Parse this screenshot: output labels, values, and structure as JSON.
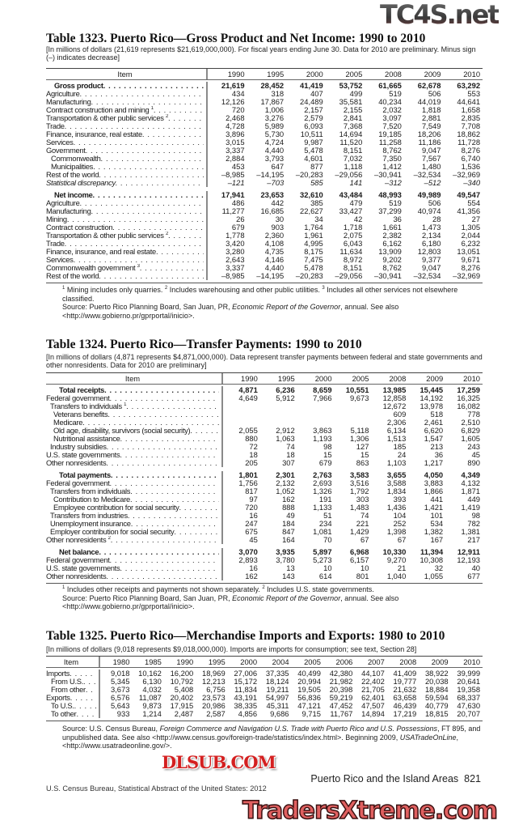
{
  "tables": [
    {
      "title": "Table 1323. Puerto Rico—Gross Product and Net Income: 1990 to 2010",
      "note": "[In millions of dollars (21,619 represents $21,619,000,000). For fiscal years ending June 30. Data for 2010 are preliminary. Minus sign (–) indicates decrease]",
      "item_header": "Item",
      "columns": [
        "1990",
        "1995",
        "2000",
        "2005",
        "2008",
        "2009",
        "2010"
      ],
      "rows": [
        {
          "label": "Gross product",
          "style": "bold",
          "level": 2,
          "values": [
            "21,619",
            "28,452",
            "41,419",
            "53,752",
            "61,665",
            "62,678",
            "63,292"
          ]
        },
        {
          "label": "Agriculture",
          "level": 0,
          "values": [
            "434",
            "318",
            "407",
            "499",
            "519",
            "506",
            "553"
          ]
        },
        {
          "label": "Manufacturing",
          "level": 0,
          "values": [
            "12,126",
            "17,867",
            "24,489",
            "35,581",
            "40,234",
            "44,019",
            "44,641"
          ]
        },
        {
          "label": "Contract construction and mining",
          "sup": "1",
          "level": 0,
          "values": [
            "720",
            "1,006",
            "2,157",
            "2,155",
            "2,032",
            "1,818",
            "1,658"
          ]
        },
        {
          "label": "Transportation & other public services",
          "sup": "2",
          "level": 0,
          "values": [
            "2,468",
            "3,276",
            "2,579",
            "2,841",
            "3,097",
            "2,881",
            "2,835"
          ]
        },
        {
          "label": "Trade",
          "level": 0,
          "values": [
            "4,728",
            "5,989",
            "6,093",
            "7,368",
            "7,520",
            "7,549",
            "7,708"
          ]
        },
        {
          "label": "Finance, insurance, real estate",
          "level": 0,
          "values": [
            "3,896",
            "5,730",
            "10,511",
            "14,694",
            "19,185",
            "18,206",
            "18,862"
          ]
        },
        {
          "label": "Services",
          "level": 0,
          "values": [
            "3,015",
            "4,724",
            "9,987",
            "11,520",
            "11,258",
            "11,186",
            "11,728"
          ]
        },
        {
          "label": "Government",
          "level": 0,
          "values": [
            "3,337",
            "4,440",
            "5,478",
            "8,151",
            "8,762",
            "9,047",
            "8,276"
          ]
        },
        {
          "label": "Commonwealth",
          "level": 1,
          "values": [
            "2,884",
            "3,793",
            "4,601",
            "7,032",
            "7,350",
            "7,567",
            "6,740"
          ]
        },
        {
          "label": "Municipalities",
          "level": 1,
          "values": [
            "453",
            "647",
            "877",
            "1,118",
            "1,412",
            "1,480",
            "1,536"
          ]
        },
        {
          "label": "Rest of the world",
          "level": 0,
          "values": [
            "–8,985",
            "–14,195",
            "–20,283",
            "–29,056",
            "–30,941",
            "–32,534",
            "–32,969"
          ]
        },
        {
          "label": "Statistical discrepancy",
          "style": "italic",
          "level": 0,
          "values": [
            "–121",
            "–703",
            "585",
            "141",
            "–312",
            "–512",
            "–340"
          ]
        },
        {
          "label": "Net income",
          "style": "bold",
          "level": 2,
          "section_start": true,
          "values": [
            "17,941",
            "23,653",
            "32,610",
            "43,484",
            "48,993",
            "49,989",
            "49,547"
          ]
        },
        {
          "label": "Agriculture",
          "level": 0,
          "values": [
            "486",
            "442",
            "385",
            "479",
            "519",
            "506",
            "554"
          ]
        },
        {
          "label": "Manufacturing",
          "level": 0,
          "values": [
            "11,277",
            "16,685",
            "22,627",
            "33,427",
            "37,299",
            "40,974",
            "41,356"
          ]
        },
        {
          "label": "Mining",
          "level": 0,
          "values": [
            "26",
            "30",
            "34",
            "42",
            "36",
            "28",
            "27"
          ]
        },
        {
          "label": "Contract construction",
          "level": 0,
          "values": [
            "679",
            "903",
            "1,764",
            "1,718",
            "1,661",
            "1,473",
            "1,305"
          ]
        },
        {
          "label": "Transportation & other public services",
          "sup": "2",
          "level": 0,
          "values": [
            "1,778",
            "2,360",
            "1,961",
            "2,075",
            "2,382",
            "2,134",
            "2,044"
          ]
        },
        {
          "label": "Trade",
          "level": 0,
          "values": [
            "3,420",
            "4,108",
            "4,995",
            "6,043",
            "6,162",
            "6,180",
            "6,232"
          ]
        },
        {
          "label": "Finance, insurance, and real estate",
          "level": 0,
          "values": [
            "3,280",
            "4,735",
            "8,175",
            "11,634",
            "13,909",
            "12,803",
            "13,051"
          ]
        },
        {
          "label": "Services",
          "level": 0,
          "values": [
            "2,643",
            "4,146",
            "7,475",
            "8,972",
            "9,202",
            "9,377",
            "9,671"
          ]
        },
        {
          "label": "Commonwealth government",
          "sup": "3",
          "level": 0,
          "values": [
            "3,337",
            "4,440",
            "5,478",
            "8,151",
            "8,762",
            "9,047",
            "8,276"
          ]
        },
        {
          "label": "Rest of the world",
          "level": 0,
          "values": [
            "–8,985",
            "–14,195",
            "–20,283",
            "–29,056",
            "–30,941",
            "–32,534",
            "–32,969"
          ]
        }
      ],
      "footnotes": [
        [
          {
            "sup": "1"
          },
          {
            "text": " Mining includes only quarries. "
          },
          {
            "sup": "2"
          },
          {
            "text": " Includes warehousing and other public utilities. "
          },
          {
            "sup": "3"
          },
          {
            "text": " Includes all other services not elsewhere classified."
          }
        ],
        [
          {
            "text": "Source: Puerto Rico Planning Board, San Juan, PR, "
          },
          {
            "text": "Economic Report of the Governor",
            "italic": true
          },
          {
            "text": ", annual. See also <http://www.gobierno.pr/gprportal/inicio>."
          }
        ]
      ]
    },
    {
      "title": "Table 1324. Puerto Rico—Transfer Payments: 1990 to 2010",
      "note": "[In millions of dollars (4,871 represents $4,871,000,000). Data represent transfer payments between federal and state governments and other nonresidents. Data for 2010 are preliminary]",
      "item_header": "Item",
      "columns": [
        "1990",
        "1995",
        "2000",
        "2005",
        "2008",
        "2009",
        "2010"
      ],
      "rows": [
        {
          "label": "Total receipts",
          "style": "bold",
          "level": 3,
          "values": [
            "4,871",
            "6,236",
            "8,659",
            "10,551",
            "13,985",
            "15,445",
            "17,259"
          ]
        },
        {
          "label": "Federal government",
          "level": 0,
          "values": [
            "4,649",
            "5,912",
            "7,966",
            "9,673",
            "12,858",
            "14,192",
            "16,325"
          ]
        },
        {
          "label": "Transfers to individuals",
          "sup": "1",
          "level": 1,
          "values": [
            "",
            "",
            "",
            "",
            "12,672",
            "13,978",
            "16,082"
          ]
        },
        {
          "label": "Veterans benefits",
          "level": 2,
          "values": [
            "",
            "",
            "",
            "",
            "609",
            "518",
            "778"
          ]
        },
        {
          "label": "Medicare",
          "level": 2,
          "values": [
            "",
            "",
            "",
            "",
            "2,306",
            "2,461",
            "2,510"
          ]
        },
        {
          "label": "Old age, disability, survivors (social security)",
          "level": 2,
          "values": [
            "2,055",
            "2,912",
            "3,863",
            "5,118",
            "6,134",
            "6,620",
            "6,829"
          ]
        },
        {
          "label": "Nutritional assistance",
          "level": 2,
          "values": [
            "880",
            "1,063",
            "1,193",
            "1,306",
            "1,513",
            "1,547",
            "1,605"
          ]
        },
        {
          "label": "Industry subsidies",
          "level": 1,
          "values": [
            "72",
            "74",
            "98",
            "127",
            "185",
            "213",
            "243"
          ]
        },
        {
          "label": "U.S. state governments",
          "level": 0,
          "values": [
            "18",
            "18",
            "15",
            "15",
            "24",
            "36",
            "45"
          ]
        },
        {
          "label": "Other nonresidents",
          "level": 0,
          "values": [
            "205",
            "307",
            "679",
            "863",
            "1,103",
            "1,217",
            "890"
          ]
        },
        {
          "label": "Total payments",
          "style": "bold",
          "level": 3,
          "section_start": true,
          "values": [
            "1,801",
            "2,301",
            "2,763",
            "3,583",
            "3,655",
            "4,050",
            "4,349"
          ]
        },
        {
          "label": "Federal government",
          "level": 0,
          "values": [
            "1,756",
            "2,132",
            "2,693",
            "3,516",
            "3,588",
            "3,883",
            "4,132"
          ]
        },
        {
          "label": "Transfers from individuals",
          "level": 1,
          "values": [
            "817",
            "1,052",
            "1,326",
            "1,792",
            "1,834",
            "1,866",
            "1,871"
          ]
        },
        {
          "label": "Contribution to Medicare",
          "level": 2,
          "values": [
            "97",
            "162",
            "191",
            "303",
            "393",
            "441",
            "449"
          ]
        },
        {
          "label": "Employee contribution for social security",
          "level": 2,
          "values": [
            "720",
            "888",
            "1,133",
            "1,483",
            "1,436",
            "1,421",
            "1,419"
          ]
        },
        {
          "label": "Transfers from industries",
          "level": 1,
          "values": [
            "16",
            "49",
            "51",
            "74",
            "104",
            "101",
            "98"
          ]
        },
        {
          "label": "Unemployment insurance",
          "level": 1,
          "values": [
            "247",
            "184",
            "234",
            "221",
            "252",
            "534",
            "782"
          ]
        },
        {
          "label": "Employer contribution for social security",
          "level": 1,
          "values": [
            "675",
            "847",
            "1,081",
            "1,429",
            "1,398",
            "1,382",
            "1,381"
          ]
        },
        {
          "label": "Other nonresidents",
          "sup": "2",
          "level": 0,
          "values": [
            "45",
            "164",
            "70",
            "67",
            "67",
            "167",
            "217"
          ]
        },
        {
          "label": "Net balance",
          "style": "bold",
          "level": 3,
          "section_start": true,
          "values": [
            "3,070",
            "3,935",
            "5,897",
            "6,968",
            "10,330",
            "11,394",
            "12,911"
          ]
        },
        {
          "label": "Federal government",
          "level": 0,
          "values": [
            "2,893",
            "3,780",
            "5,273",
            "6,157",
            "9,270",
            "10,308",
            "12,193"
          ]
        },
        {
          "label": "U.S. state governments",
          "level": 0,
          "values": [
            "16",
            "13",
            "10",
            "10",
            "21",
            "32",
            "40"
          ]
        },
        {
          "label": "Other nonresidents",
          "level": 0,
          "values": [
            "162",
            "143",
            "614",
            "801",
            "1,040",
            "1,055",
            "677"
          ]
        }
      ],
      "footnotes": [
        [
          {
            "sup": "1"
          },
          {
            "text": " Includes other receipts and payments not shown separately. "
          },
          {
            "sup": "2"
          },
          {
            "text": " Includes U.S. state governments."
          }
        ],
        [
          {
            "text": "Source: Puerto Rico Planning Board, San Juan, PR, "
          },
          {
            "text": "Economic Report of the Governor",
            "italic": true
          },
          {
            "text": ", annual. See also <http://www.gobierno.pr/gprportal/inicio>."
          }
        ]
      ]
    },
    {
      "title": "Table 1325. Puerto Rico—Merchandise Imports and Exports: 1980 to 2010",
      "note": "[In millions of dollars (9,018 represents $9,018,000,000). Imports are imports for consumption; see text, Section 28]",
      "item_header": "Item",
      "columns": [
        "1980",
        "1985",
        "1990",
        "1995",
        "2000",
        "2004",
        "2005",
        "2006",
        "2007",
        "2008",
        "2009",
        "2010"
      ],
      "rows": [
        {
          "label": "Imports",
          "level": 0,
          "values": [
            "9,018",
            "10,162",
            "16,200",
            "18,969",
            "27,006",
            "37,335",
            "40,499",
            "42,380",
            "44,107",
            "41,409",
            "38,922",
            "39,999"
          ]
        },
        {
          "label": "From U.S.",
          "level": 1,
          "values": [
            "5,345",
            "6,130",
            "10,792",
            "12,213",
            "15,172",
            "18,124",
            "20,994",
            "21,982",
            "22,402",
            "19,777",
            "20,038",
            "20,641"
          ]
        },
        {
          "label": "From other",
          "level": 1,
          "values": [
            "3,673",
            "4,032",
            "5,408",
            "6,756",
            "11,834",
            "19,211",
            "19,505",
            "20,398",
            "21,705",
            "21,632",
            "18,884",
            "19,358"
          ]
        },
        {
          "label": "Exports",
          "level": 0,
          "values": [
            "6,576",
            "11,087",
            "20,402",
            "23,573",
            "43,191",
            "54,997",
            "56,836",
            "59,219",
            "62,401",
            "63,658",
            "59,594",
            "68,337"
          ]
        },
        {
          "label": "To U.S.",
          "level": 1,
          "values": [
            "5,643",
            "9,873",
            "17,915",
            "20,986",
            "38,335",
            "45,311",
            "47,121",
            "47,452",
            "47,507",
            "46,439",
            "40,779",
            "47,630"
          ]
        },
        {
          "label": "To other",
          "level": 1,
          "values": [
            "933",
            "1,214",
            "2,487",
            "2,587",
            "4,856",
            "9,686",
            "9,715",
            "11,767",
            "14,894",
            "17,219",
            "18,815",
            "20,707"
          ]
        }
      ],
      "footnotes": [
        [
          {
            "text": "Source: U.S. Census Bureau, "
          },
          {
            "text": "Foreign Commerce and Navigation U.S. Trade with Puerto Rico and U.S. Possessions",
            "italic": true
          },
          {
            "text": ", FT 895, and unpublished data. See also <http://www.census.gov/foreign-trade/statistics/index.html>. Beginning 2009, "
          },
          {
            "text": "USATradeOnLine",
            "italic": true
          },
          {
            "text": ", <http://www.usatradeonline.gov/>."
          }
        ]
      ]
    }
  ],
  "page_footer": {
    "section_title": "Puerto Rico and the Island Areas",
    "page_number": "821",
    "publication": "U.S. Census Bureau, Statistical Abstract of the United States: 2012"
  },
  "watermarks": [
    "TC4S.net",
    "DLSUB.COM",
    "TradersXtreme.com"
  ]
}
